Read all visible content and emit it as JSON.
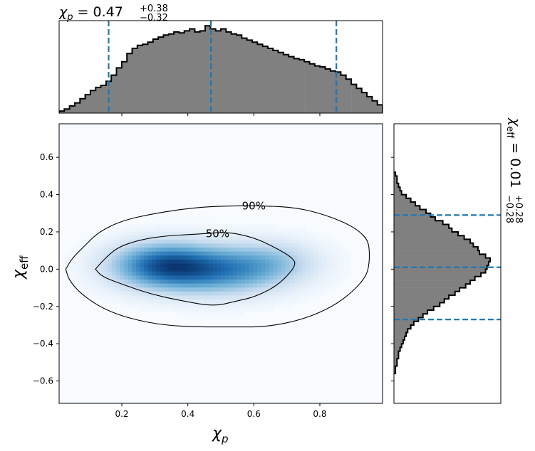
{
  "chart_data": [
    {
      "type": "histogram",
      "panel": "top-marginal",
      "parameter": "chi_p",
      "title": {
        "symbol": "χ",
        "sub": "p",
        "median": "0.47",
        "plus": "+0.38",
        "minus": "−0.32"
      },
      "xlim": [
        0.01,
        0.99
      ],
      "bins_start": 0.01,
      "bins_end": 0.99,
      "counts": [
        2,
        4,
        7,
        10,
        14,
        18,
        22,
        25,
        27,
        31,
        37,
        44,
        50,
        58,
        63,
        66,
        67,
        69,
        72,
        74,
        76,
        77,
        79,
        78,
        80,
        82,
        79,
        80,
        85,
        82,
        80,
        82,
        79,
        77,
        76,
        73,
        71,
        69,
        67,
        65,
        63,
        61,
        59,
        57,
        55,
        53,
        52,
        50,
        48,
        46,
        45,
        43,
        41,
        40,
        37,
        33,
        28,
        24,
        20,
        16,
        12,
        8
      ],
      "ylim": [
        0,
        90
      ],
      "quantile_lines": [
        0.16,
        0.47,
        0.85
      ],
      "style": {
        "fill": "#808080",
        "edge": "#000000",
        "quantile_color": "#1f77b4"
      }
    },
    {
      "type": "heatmap",
      "panel": "joint",
      "xlabel": {
        "symbol": "χ",
        "sub": "p"
      },
      "ylabel": {
        "symbol": "χ",
        "sub": "eff"
      },
      "xlim": [
        0.01,
        0.99
      ],
      "ylim": [
        -0.72,
        0.78
      ],
      "xticks": [
        0.2,
        0.4,
        0.6,
        0.8
      ],
      "xtick_labels": [
        "0.2",
        "0.4",
        "0.6",
        "0.8"
      ],
      "yticks": [
        -0.6,
        -0.4,
        -0.2,
        0.0,
        0.2,
        0.4,
        0.6
      ],
      "ytick_labels": [
        "−0.6",
        "−0.4",
        "−0.2",
        "0.0",
        "0.2",
        "0.4",
        "0.6"
      ],
      "density_peaks": [
        {
          "x": 0.32,
          "y": 0.02,
          "sx": 0.11,
          "sy": 0.085,
          "w": 1.0
        },
        {
          "x": 0.5,
          "y": -0.01,
          "sx": 0.13,
          "sy": 0.09,
          "w": 0.75
        },
        {
          "x": 0.66,
          "y": 0.04,
          "sx": 0.1,
          "sy": 0.08,
          "w": 0.35
        }
      ],
      "contours": [
        {
          "label": "50%",
          "label_at": [
            0.49,
            0.19
          ],
          "points": [
            [
              0.12,
              0.0
            ],
            [
              0.15,
              0.06
            ],
            [
              0.19,
              0.12
            ],
            [
              0.26,
              0.16
            ],
            [
              0.34,
              0.18
            ],
            [
              0.45,
              0.19
            ],
            [
              0.52,
              0.2
            ],
            [
              0.6,
              0.17
            ],
            [
              0.66,
              0.12
            ],
            [
              0.71,
              0.07
            ],
            [
              0.73,
              0.03
            ],
            [
              0.7,
              -0.04
            ],
            [
              0.66,
              -0.1
            ],
            [
              0.6,
              -0.15
            ],
            [
              0.55,
              -0.17
            ],
            [
              0.48,
              -0.2
            ],
            [
              0.38,
              -0.17
            ],
            [
              0.28,
              -0.13
            ],
            [
              0.2,
              -0.08
            ],
            [
              0.14,
              -0.04
            ],
            [
              0.12,
              0.0
            ]
          ]
        },
        {
          "label": "90%",
          "label_at": [
            0.6,
            0.34
          ],
          "points": [
            [
              0.03,
              0.0
            ],
            [
              0.05,
              0.06
            ],
            [
              0.09,
              0.13
            ],
            [
              0.13,
              0.2
            ],
            [
              0.2,
              0.26
            ],
            [
              0.3,
              0.3
            ],
            [
              0.42,
              0.33
            ],
            [
              0.52,
              0.34
            ],
            [
              0.63,
              0.34
            ],
            [
              0.73,
              0.33
            ],
            [
              0.82,
              0.29
            ],
            [
              0.9,
              0.23
            ],
            [
              0.94,
              0.17
            ],
            [
              0.95,
              0.12
            ],
            [
              0.95,
              0.03
            ],
            [
              0.94,
              -0.04
            ],
            [
              0.9,
              -0.12
            ],
            [
              0.84,
              -0.2
            ],
            [
              0.75,
              -0.27
            ],
            [
              0.64,
              -0.31
            ],
            [
              0.52,
              -0.31
            ],
            [
              0.4,
              -0.31
            ],
            [
              0.28,
              -0.29
            ],
            [
              0.16,
              -0.23
            ],
            [
              0.08,
              -0.14
            ],
            [
              0.04,
              -0.06
            ],
            [
              0.03,
              0.0
            ]
          ]
        }
      ],
      "colormap": "Blues"
    },
    {
      "type": "histogram",
      "panel": "right-marginal",
      "orientation": "horizontal",
      "parameter": "chi_eff",
      "title": {
        "symbol": "χ",
        "sub": "eff",
        "median": "0.01",
        "plus": "+0.28",
        "minus": "−0.28"
      },
      "ylim": [
        -0.72,
        0.78
      ],
      "bins_start": -0.56,
      "bins_end": 0.52,
      "counts": [
        1,
        1,
        2,
        2,
        3,
        3,
        4,
        5,
        6,
        7,
        8,
        9,
        11,
        13,
        16,
        19,
        22,
        26,
        30,
        33,
        36,
        40,
        43,
        47,
        50,
        53,
        57,
        60,
        61,
        62,
        63,
        60,
        56,
        55,
        52,
        50,
        46,
        42,
        38,
        36,
        32,
        27,
        24,
        21,
        17,
        14,
        11,
        8,
        5,
        4,
        3,
        2,
        2,
        1
      ],
      "xlim": [
        0,
        70
      ],
      "quantile_lines": [
        -0.27,
        0.01,
        0.29
      ],
      "style": {
        "fill": "#808080",
        "edge": "#000000",
        "quantile_color": "#1f77b4"
      }
    }
  ]
}
